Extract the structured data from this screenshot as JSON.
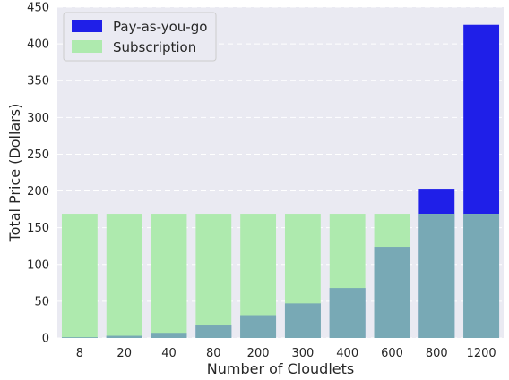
{
  "chart_data": {
    "type": "bar",
    "xlabel": "Number of Cloudlets",
    "ylabel": "Total Price (Dollars)",
    "categories": [
      "8",
      "20",
      "40",
      "80",
      "200",
      "300",
      "400",
      "600",
      "800",
      "1200"
    ],
    "ylim": [
      0,
      450
    ],
    "yticks": [
      0,
      50,
      100,
      150,
      200,
      250,
      300,
      350,
      400,
      450
    ],
    "grid": true,
    "legend_position": "top-left",
    "series": [
      {
        "name": "Pay-as-you-go",
        "color": "#1f1fe8",
        "values": [
          1,
          3,
          7,
          17,
          31,
          47,
          68,
          124,
          203,
          426
        ]
      },
      {
        "name": "Subscription",
        "color": "#aeeaae",
        "values": [
          169,
          169,
          169,
          169,
          169,
          169,
          169,
          169,
          169,
          169
        ]
      }
    ],
    "overlap_color": "#78a9b5"
  }
}
